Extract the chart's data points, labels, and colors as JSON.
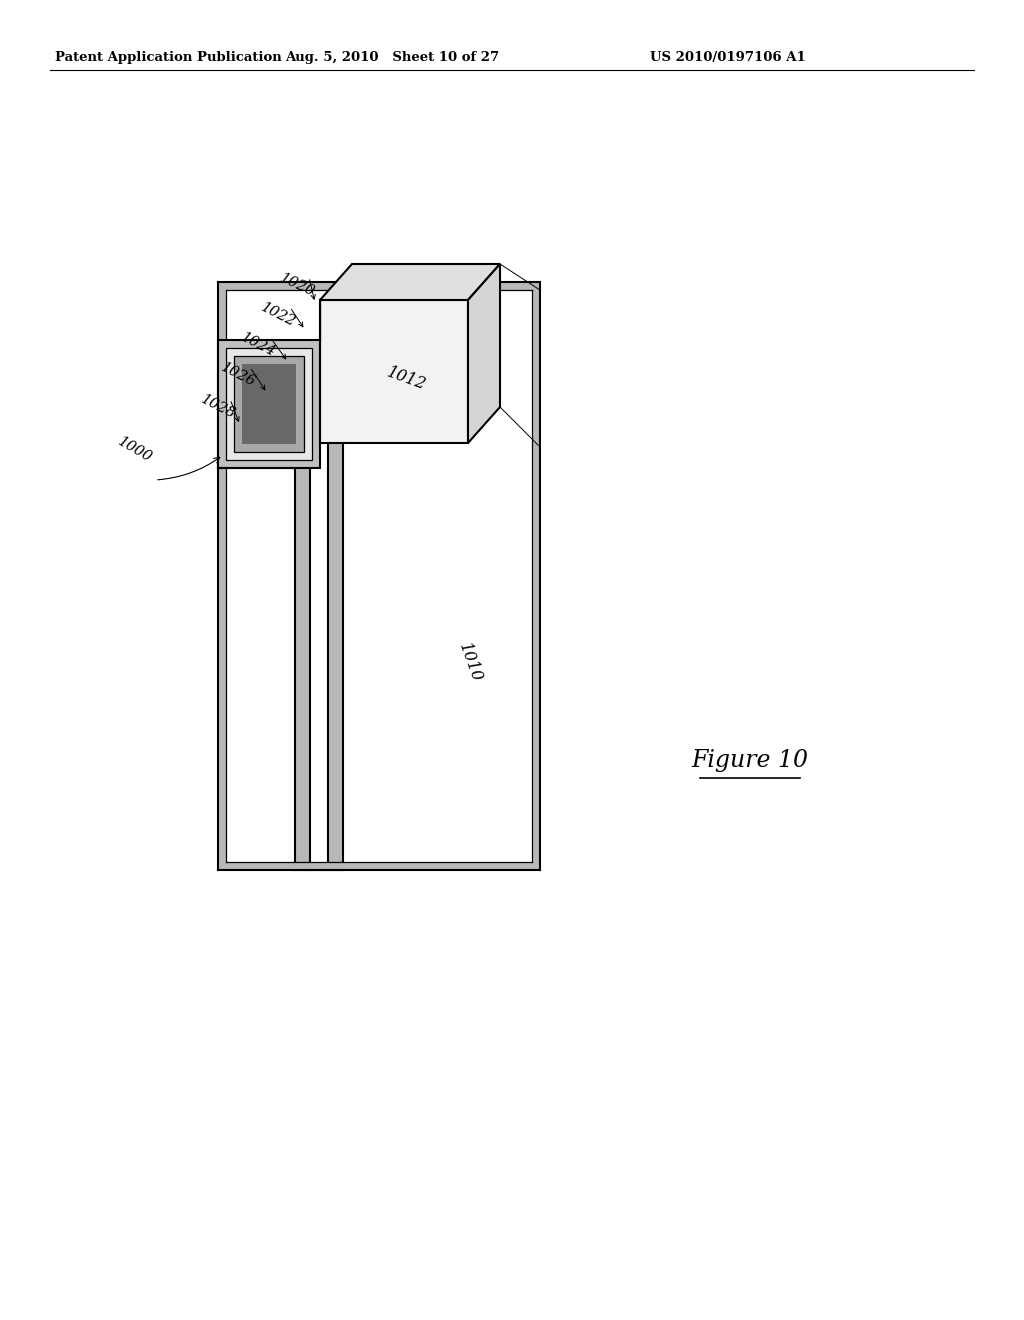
{
  "bg_color": "#ffffff",
  "header_left": "Patent Application Publication",
  "header_center": "Aug. 5, 2010   Sheet 10 of 27",
  "header_right": "US 2010/0197106 A1",
  "figure_label": "Figure 10",
  "line_color": "#000000",
  "wall_fill": "#b8b8b8",
  "inner_fill": "#d0d0d0",
  "dark_fill": "#686868",
  "die_fill": "#f0f0f0",
  "die_side_fill": "#d8d8d8",
  "die_top_fill": "#e4e4e4",
  "substrate_interior": "#ffffff",
  "comp_outer_fill": "#c8c8c8",
  "comp_inner_fill": "#a0a0a0"
}
